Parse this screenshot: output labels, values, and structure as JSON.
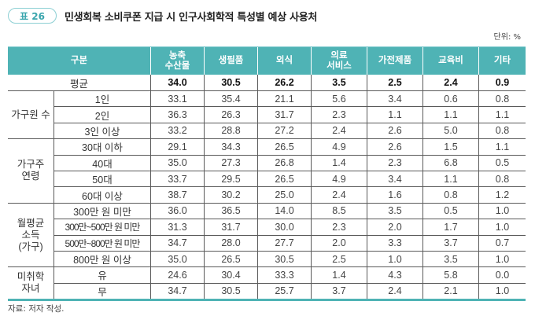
{
  "header": {
    "badge": "표 26",
    "title": "민생회복 소비쿠폰 지급 시 인구사회학적 특성별 예상 사용처",
    "unit": "단위: %"
  },
  "table": {
    "columns": [
      "구분",
      "농축\n수산물",
      "생필품",
      "외식",
      "의료\n서비스",
      "가전제품",
      "교육비",
      "기타"
    ],
    "average": {
      "label": "평균",
      "values": [
        "34.0",
        "30.5",
        "26.2",
        "3.5",
        "2.5",
        "2.4",
        "0.9"
      ]
    },
    "groups": [
      {
        "label": "가구원 수",
        "rows": [
          {
            "label": "1인",
            "values": [
              "33.1",
              "35.4",
              "21.1",
              "5.6",
              "3.4",
              "0.6",
              "0.8"
            ]
          },
          {
            "label": "2인",
            "values": [
              "36.3",
              "26.3",
              "31.7",
              "2.3",
              "1.1",
              "1.1",
              "1.1"
            ]
          },
          {
            "label": "3인 이상",
            "values": [
              "33.2",
              "28.8",
              "27.2",
              "2.4",
              "2.6",
              "5.0",
              "0.8"
            ]
          }
        ]
      },
      {
        "label": "가구주\n연령",
        "rows": [
          {
            "label": "30대 이하",
            "values": [
              "29.1",
              "34.3",
              "26.5",
              "4.9",
              "2.6",
              "1.5",
              "1.1"
            ]
          },
          {
            "label": "40대",
            "values": [
              "35.0",
              "27.3",
              "26.8",
              "1.4",
              "2.3",
              "6.8",
              "0.5"
            ]
          },
          {
            "label": "50대",
            "values": [
              "33.7",
              "29.5",
              "26.5",
              "4.9",
              "3.4",
              "1.1",
              "0.8"
            ]
          },
          {
            "label": "60대 이상",
            "values": [
              "38.7",
              "30.2",
              "25.0",
              "2.4",
              "1.6",
              "0.8",
              "1.2"
            ]
          }
        ]
      },
      {
        "label": "월평균\n소득\n(가구)",
        "rows": [
          {
            "label": "300만 원 미만",
            "values": [
              "36.0",
              "36.5",
              "14.0",
              "8.5",
              "3.5",
              "0.5",
              "1.0"
            ]
          },
          {
            "label": "300만~500만 원 미만",
            "values": [
              "31.3",
              "31.7",
              "30.0",
              "2.3",
              "2.0",
              "1.7",
              "1.0"
            ]
          },
          {
            "label": "500만~800만 원 미만",
            "values": [
              "34.7",
              "28.0",
              "27.7",
              "2.0",
              "3.3",
              "3.7",
              "0.7"
            ]
          },
          {
            "label": "800만 원 이상",
            "values": [
              "35.0",
              "26.5",
              "30.5",
              "2.5",
              "1.0",
              "3.5",
              "1.0"
            ]
          }
        ]
      },
      {
        "label": "미취학\n자녀",
        "rows": [
          {
            "label": "유",
            "values": [
              "24.6",
              "30.4",
              "33.3",
              "1.4",
              "4.3",
              "5.8",
              "0.0"
            ]
          },
          {
            "label": "무",
            "values": [
              "34.7",
              "30.5",
              "25.7",
              "3.7",
              "2.4",
              "2.1",
              "1.0"
            ]
          }
        ]
      }
    ]
  },
  "footer": {
    "source": "자료: 저자 작성."
  },
  "colors": {
    "header_bg": "#4fb3b5",
    "accent": "#3aa5ad",
    "badge_border": "#8ccfd3"
  }
}
